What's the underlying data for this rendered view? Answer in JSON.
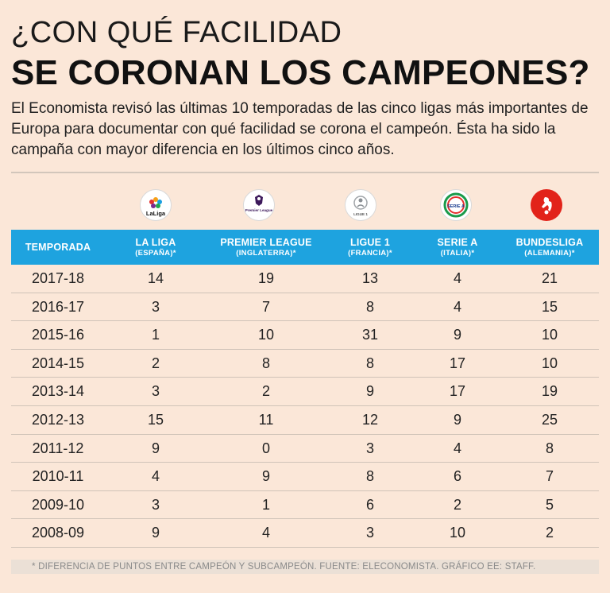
{
  "title": {
    "line1": "¿CON QUÉ FACILIDAD",
    "line2": "SE CORONAN LOS CAMPEONES?"
  },
  "intro": "El Economista revisó las últimas 10 temporadas de las cinco ligas más importantes de Europa para documentar con qué facilidad se corona el campeón. Ésta ha sido la campaña con mayor diferencia en los últimos cinco años.",
  "logos": {
    "laliga": "LaLiga",
    "premier": "Premier League",
    "ligue1": "LIGUE 1",
    "seriea": "SERIE A"
  },
  "colors": {
    "background": "#fbe7d8",
    "header": "#1ea3df",
    "bundesliga": "#e2231a"
  },
  "table": {
    "headers": [
      {
        "main": "TEMPORADA",
        "sub": ""
      },
      {
        "main": "LA LIGA",
        "sub": "(ESPAÑA)*"
      },
      {
        "main": "PREMIER LEAGUE",
        "sub": "(INGLATERRA)*"
      },
      {
        "main": "LIGUE 1",
        "sub": "(FRANCIA)*"
      },
      {
        "main": "SERIE A",
        "sub": "(ITALIA)*"
      },
      {
        "main": "BUNDESLIGA",
        "sub": "(ALEMANIA)*"
      }
    ],
    "rows": [
      [
        "2017-18",
        "14",
        "19",
        "13",
        "4",
        "21"
      ],
      [
        "2016-17",
        "3",
        "7",
        "8",
        "4",
        "15"
      ],
      [
        "2015-16",
        "1",
        "10",
        "31",
        "9",
        "10"
      ],
      [
        "2014-15",
        "2",
        "8",
        "8",
        "17",
        "10"
      ],
      [
        "2013-14",
        "3",
        "2",
        "9",
        "17",
        "19"
      ],
      [
        "2012-13",
        "15",
        "11",
        "12",
        "9",
        "25"
      ],
      [
        "2011-12",
        "9",
        "0",
        "3",
        "4",
        "8"
      ],
      [
        "2010-11",
        "4",
        "9",
        "8",
        "6",
        "7"
      ],
      [
        "2009-10",
        "3",
        "1",
        "6",
        "2",
        "5"
      ],
      [
        "2008-09",
        "9",
        "4",
        "3",
        "10",
        "2"
      ]
    ]
  },
  "footnote": "* DIFERENCIA DE PUNTOS ENTRE CAMPEÓN Y SUBCAMPEÓN.  FUENTE: ELECONOMISTA.  GRÁFICO EE: STAFF."
}
